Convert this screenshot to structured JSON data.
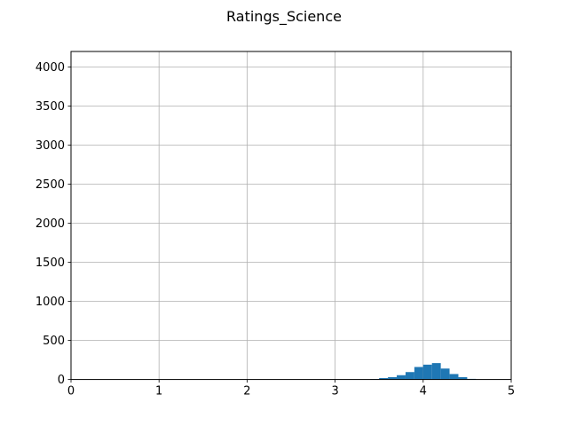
{
  "chart_data": {
    "type": "bar",
    "title": "Ratings_Science",
    "xlabel": "",
    "ylabel": "",
    "xlim": [
      0,
      5
    ],
    "ylim": [
      0,
      4200
    ],
    "xticks": [
      "0",
      "1",
      "2",
      "3",
      "4",
      "5"
    ],
    "yticks": [
      "0",
      "500",
      "1000",
      "1500",
      "2000",
      "2500",
      "3000",
      "3500",
      "4000"
    ],
    "grid": true,
    "bar_color": "#1f77b4",
    "bins": [
      {
        "x0": 3.4,
        "x1": 3.5,
        "count": 5
      },
      {
        "x0": 3.5,
        "x1": 3.6,
        "count": 18
      },
      {
        "x0": 3.6,
        "x1": 3.7,
        "count": 30
      },
      {
        "x0": 3.7,
        "x1": 3.8,
        "count": 55
      },
      {
        "x0": 3.8,
        "x1": 3.9,
        "count": 95
      },
      {
        "x0": 3.9,
        "x1": 4.0,
        "count": 160
      },
      {
        "x0": 4.0,
        "x1": 4.1,
        "count": 190
      },
      {
        "x0": 4.1,
        "x1": 4.2,
        "count": 210
      },
      {
        "x0": 4.2,
        "x1": 4.3,
        "count": 140
      },
      {
        "x0": 4.3,
        "x1": 4.4,
        "count": 70
      },
      {
        "x0": 4.4,
        "x1": 4.5,
        "count": 30
      },
      {
        "x0": 4.5,
        "x1": 4.6,
        "count": 8
      }
    ]
  }
}
